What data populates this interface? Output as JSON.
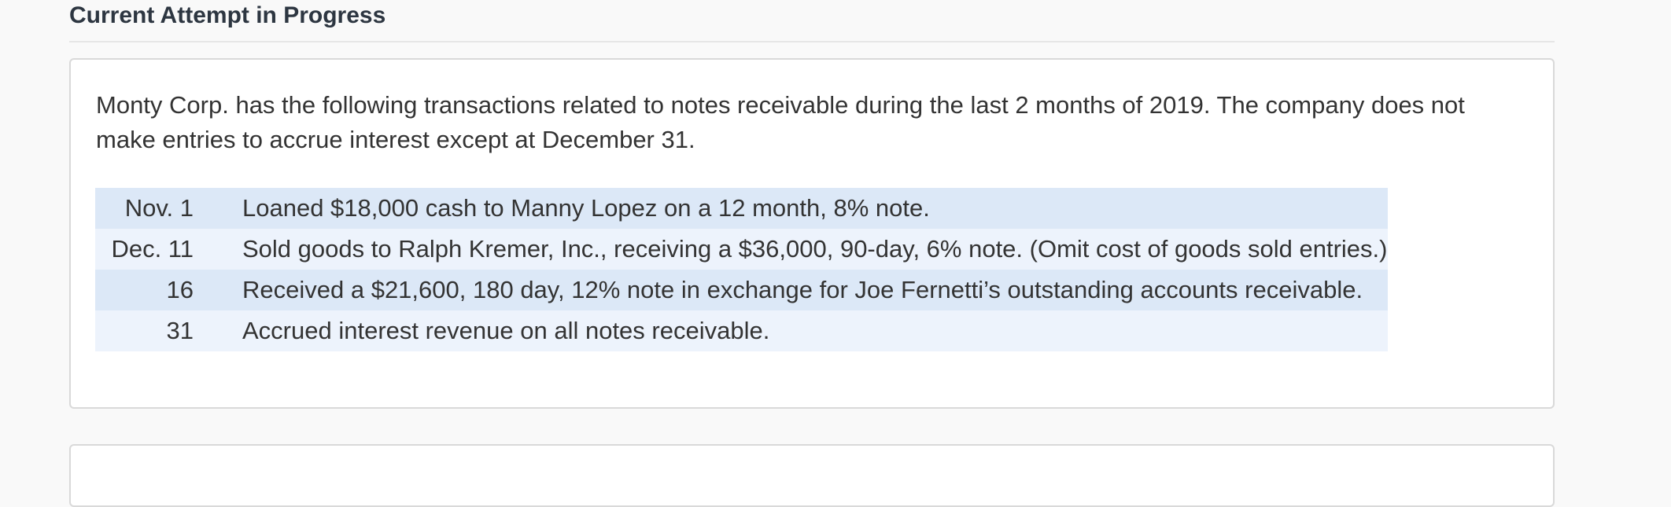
{
  "header": {
    "title": "Current Attempt in Progress"
  },
  "question": {
    "text": "Monty Corp. has the following transactions related to notes receivable during the last 2 months of 2019. The company does not make entries to accrue interest except at December 31."
  },
  "transactions": [
    {
      "date": "Nov. 1",
      "description": "Loaned $18,000 cash to Manny Lopez on a 12 month, 8% note."
    },
    {
      "date": "Dec. 11",
      "description": "Sold goods to Ralph Kremer, Inc., receiving a $36,000, 90-day, 6% note. (Omit cost of goods sold entries.)"
    },
    {
      "date": "16",
      "description": "Received a $21,600, 180 day, 12% note in exchange for Joe Fernetti’s outstanding accounts receivable."
    },
    {
      "date": "31",
      "description": "Accrued interest revenue on all notes receivable."
    }
  ]
}
